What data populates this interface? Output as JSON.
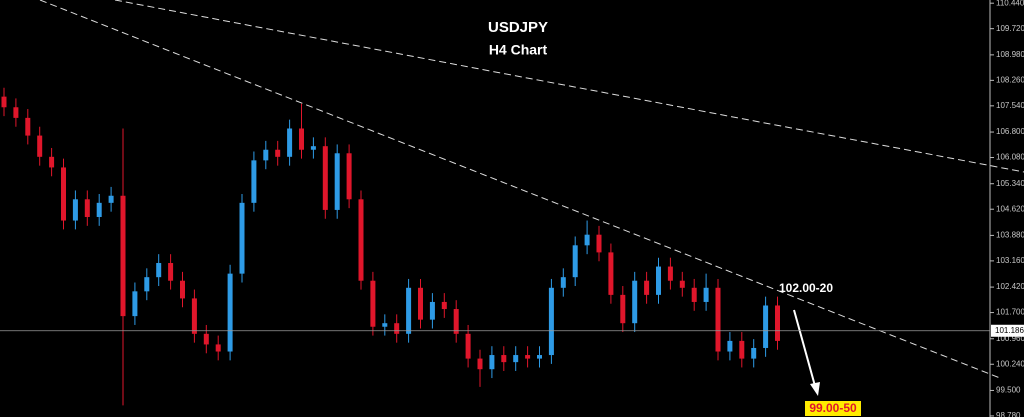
{
  "chart_data": {
    "type": "candlestick",
    "title": "USDJPY",
    "subtitle": "H4 Chart",
    "open": [
      107.8,
      107.5,
      107.2,
      106.7,
      106.1,
      105.8,
      104.3,
      104.9,
      104.4,
      104.8,
      105.0,
      101.6,
      102.3,
      102.7,
      103.1,
      102.6,
      102.1,
      101.1,
      100.8,
      100.6,
      102.8,
      104.8,
      106.0,
      106.3,
      106.1,
      106.9,
      106.3,
      106.4,
      104.6,
      106.2,
      104.9,
      102.6,
      101.3,
      101.4,
      101.1,
      102.4,
      101.5,
      102.0,
      101.8,
      101.1,
      100.4,
      100.1,
      100.5,
      100.3,
      100.5,
      100.4,
      100.5,
      102.4,
      102.7,
      103.6,
      103.9,
      103.4,
      102.2,
      101.4,
      102.6,
      102.2,
      103.0,
      102.6,
      102.4,
      102.0,
      102.4,
      100.6,
      100.9,
      100.4,
      100.7,
      101.9
    ],
    "high": [
      108.05,
      107.75,
      107.45,
      106.95,
      106.35,
      106.05,
      105.15,
      105.15,
      105.05,
      105.25,
      106.9,
      102.55,
      102.95,
      103.35,
      103.35,
      102.85,
      102.35,
      101.35,
      101.05,
      103.05,
      105.05,
      106.25,
      106.55,
      106.55,
      107.15,
      107.6,
      106.65,
      106.65,
      106.45,
      106.45,
      105.15,
      102.85,
      101.65,
      101.65,
      102.65,
      102.65,
      102.25,
      102.25,
      102.05,
      101.35,
      100.65,
      100.75,
      100.75,
      100.75,
      100.75,
      100.75,
      102.65,
      102.95,
      103.85,
      104.3,
      104.15,
      103.65,
      102.45,
      102.85,
      102.85,
      103.25,
      103.25,
      102.85,
      102.65,
      102.8,
      102.65,
      101.15,
      101.15,
      100.95,
      102.15,
      102.15
    ],
    "low": [
      107.25,
      106.95,
      106.45,
      105.85,
      105.55,
      104.05,
      104.05,
      104.15,
      104.15,
      104.55,
      99.08,
      101.35,
      102.05,
      102.45,
      102.35,
      101.85,
      100.85,
      100.55,
      100.35,
      100.35,
      102.55,
      104.55,
      105.75,
      105.85,
      105.85,
      106.05,
      106.05,
      104.35,
      104.35,
      104.65,
      102.35,
      101.05,
      101.05,
      100.85,
      100.85,
      101.25,
      101.25,
      101.55,
      100.85,
      100.15,
      99.6,
      99.85,
      100.05,
      100.05,
      100.15,
      100.15,
      100.25,
      102.15,
      102.45,
      103.35,
      103.15,
      101.95,
      101.15,
      101.15,
      101.95,
      101.95,
      102.35,
      102.15,
      101.75,
      101.75,
      100.35,
      100.35,
      100.15,
      100.15,
      100.45,
      100.65
    ],
    "close": [
      107.5,
      107.2,
      106.7,
      106.1,
      105.8,
      104.3,
      104.9,
      104.4,
      104.8,
      105.0,
      101.6,
      102.3,
      102.7,
      103.1,
      102.6,
      102.1,
      101.1,
      100.8,
      100.6,
      102.8,
      104.8,
      106.0,
      106.3,
      106.1,
      106.9,
      106.3,
      106.4,
      104.6,
      106.2,
      104.9,
      102.6,
      101.3,
      101.4,
      101.1,
      102.4,
      101.5,
      102.0,
      101.8,
      101.1,
      100.4,
      100.1,
      100.5,
      100.3,
      100.5,
      100.4,
      100.5,
      102.4,
      102.7,
      103.6,
      103.9,
      103.4,
      102.2,
      101.4,
      102.6,
      102.2,
      103.0,
      102.6,
      102.4,
      102.0,
      102.4,
      100.6,
      100.9,
      100.4,
      100.7,
      101.9,
      100.9
    ],
    "up_color": "#2e9be6",
    "down_color": "#e0162b",
    "ylim": [
      98.75,
      110.53
    ],
    "yticks": [
      {
        "value": 110.44,
        "label": "110.440"
      },
      {
        "value": 109.72,
        "label": "109.720"
      },
      {
        "value": 108.98,
        "label": "108.980"
      },
      {
        "value": 108.26,
        "label": "108.260"
      },
      {
        "value": 107.54,
        "label": "107.540"
      },
      {
        "value": 106.8,
        "label": "106.800"
      },
      {
        "value": 106.08,
        "label": "106.080"
      },
      {
        "value": 105.34,
        "label": "105.340"
      },
      {
        "value": 104.62,
        "label": "104.620"
      },
      {
        "value": 103.88,
        "label": "103.880"
      },
      {
        "value": 103.16,
        "label": "103.160"
      },
      {
        "value": 102.42,
        "label": "102.420"
      },
      {
        "value": 101.7,
        "label": "101.700"
      },
      {
        "value": 100.96,
        "label": "100.960"
      },
      {
        "value": 100.24,
        "label": "100.240"
      },
      {
        "value": 99.5,
        "label": "99.500"
      },
      {
        "value": 98.78,
        "label": "98.780"
      }
    ],
    "current_price": {
      "value": 101.186,
      "label": "101.186"
    },
    "annotations": [
      {
        "text": "102.00-20"
      },
      {
        "text": "99.00-50"
      }
    ]
  }
}
